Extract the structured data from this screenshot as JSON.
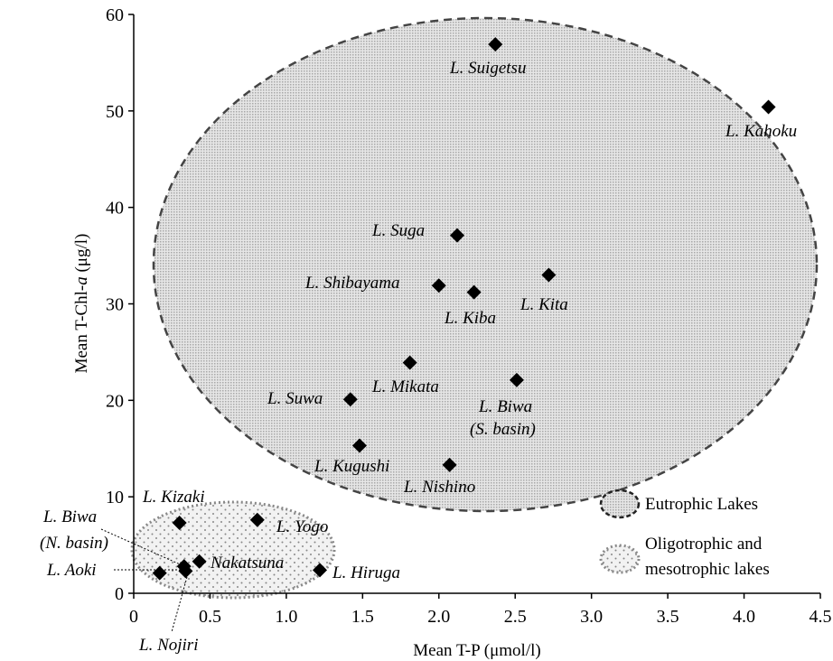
{
  "chart_data": {
    "type": "scatter",
    "xlabel": "Mean T-P (μmol/l)",
    "ylabel_prefix": "Mean T-Chl-",
    "ylabel_italic": "a",
    "ylabel_suffix": " (μg/l)",
    "xlim": [
      0,
      4.5
    ],
    "ylim": [
      0,
      60
    ],
    "x_ticks": [
      0,
      0.5,
      1.0,
      1.5,
      2.0,
      2.5,
      3.0,
      3.5,
      4.0,
      4.5
    ],
    "x_tick_labels": [
      "0",
      "0.5",
      "1.0",
      "1.5",
      "2.0",
      "2.5",
      "3.0",
      "3.5",
      "4.0",
      "4.5"
    ],
    "y_ticks": [
      0,
      10,
      20,
      30,
      40,
      50,
      60
    ],
    "y_tick_labels": [
      "0",
      "10",
      "20",
      "30",
      "40",
      "50",
      "60"
    ],
    "grid": false,
    "legend_position": "bottom-right",
    "points": [
      {
        "label": "L. Suigetsu",
        "x": 2.37,
        "y": 56.9
      },
      {
        "label": "L. Kahoku",
        "x": 4.16,
        "y": 50.4
      },
      {
        "label": "L. Suga",
        "x": 2.12,
        "y": 37.1
      },
      {
        "label": "L. Kita",
        "x": 2.72,
        "y": 33.0
      },
      {
        "label": "L. Shibayama",
        "x": 2.0,
        "y": 31.9
      },
      {
        "label": "L. Kiba",
        "x": 2.23,
        "y": 31.2
      },
      {
        "label": "L. Mikata",
        "x": 1.81,
        "y": 23.9
      },
      {
        "label": "L. Biwa (S. basin)",
        "x": 2.51,
        "y": 22.1
      },
      {
        "label": "L. Suwa",
        "x": 1.42,
        "y": 20.1
      },
      {
        "label": "L. Kugushi",
        "x": 1.48,
        "y": 15.3
      },
      {
        "label": "L. Nishino",
        "x": 2.07,
        "y": 13.3
      },
      {
        "label": "L. Kizaki",
        "x": 0.3,
        "y": 7.3
      },
      {
        "label": "L. Yogo",
        "x": 0.81,
        "y": 7.6
      },
      {
        "label": "L. Biwa (N. basin)",
        "x": 0.33,
        "y": 2.8
      },
      {
        "label": "Nakatsuna",
        "x": 0.43,
        "y": 3.3
      },
      {
        "label": "L. Aoki",
        "x": 0.17,
        "y": 2.1
      },
      {
        "label": "L. Nojiri",
        "x": 0.34,
        "y": 2.3
      },
      {
        "label": "L. Hiruga",
        "x": 1.22,
        "y": 2.4
      }
    ],
    "groups": [
      {
        "name": "Eutrophic Lakes",
        "style": "dashed",
        "fill": "#d4d4d4",
        "stroke": "#444444"
      },
      {
        "name": "Oligotrophic and mesotrophic lakes",
        "name_line1": "Oligotrophic and",
        "name_line2": "mesotrophic lakes",
        "style": "dotted",
        "fill": "#f0f0f0",
        "stroke": "#888888"
      }
    ],
    "point_labels": {
      "suigetsu": "L. Suigetsu",
      "kahoku": "L. Kahoku",
      "suga": "L. Suga",
      "kita": "L. Kita",
      "shibayama": "L. Shibayama",
      "kiba": "L. Kiba",
      "mikata": "L. Mikata",
      "biwa_s_1": "L. Biwa",
      "biwa_s_2": "(S. basin)",
      "suwa": "L. Suwa",
      "kugushi": "L. Kugushi",
      "nishino": "L. Nishino",
      "kizaki": "L. Kizaki",
      "yogo": "L. Yogo",
      "biwa_n_1": "L. Biwa",
      "biwa_n_2": "(N. basin)",
      "nakatsuna": "Nakatsuna",
      "aoki": "L. Aoki",
      "nojiri": "L. Nojiri",
      "hiruga": "L. Hiruga"
    }
  }
}
